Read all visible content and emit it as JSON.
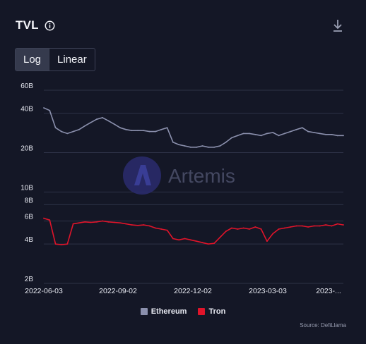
{
  "header": {
    "title": "TVL",
    "info_icon": "info-icon",
    "download_icon": "download-icon"
  },
  "scale_toggle": {
    "options": [
      "Log",
      "Linear"
    ],
    "selected": "Log"
  },
  "watermark": {
    "text": "Artemis",
    "logo": "artemis-logo"
  },
  "colors": {
    "background": "#141726",
    "ethereum": "#8b90ad",
    "tron": "#e0142a",
    "grid": "#2e3347",
    "axis_text": "#e8eaf2"
  },
  "source": "Source: DefiLlama",
  "chart_data": {
    "type": "line",
    "title": "TVL",
    "yscale": "log",
    "ylim": [
      2,
      60
    ],
    "y_unit": "B",
    "y_ticks": [
      "60B",
      "40B",
      "20B",
      "10B",
      "8B",
      "6B",
      "4B",
      "2B"
    ],
    "x_ticks": [
      "2022-06-03",
      "2022-09-02",
      "2022-12-02",
      "2023-03-03",
      "2023-..."
    ],
    "legend_position": "bottom-center",
    "grid": true,
    "x": [
      "2022-06-03",
      "2022-06-10",
      "2022-06-17",
      "2022-06-24",
      "2022-07-01",
      "2022-07-08",
      "2022-07-15",
      "2022-07-22",
      "2022-07-29",
      "2022-08-05",
      "2022-08-12",
      "2022-08-19",
      "2022-08-26",
      "2022-09-02",
      "2022-09-09",
      "2022-09-16",
      "2022-09-23",
      "2022-09-30",
      "2022-10-07",
      "2022-10-14",
      "2022-10-21",
      "2022-10-28",
      "2022-11-04",
      "2022-11-11",
      "2022-11-18",
      "2022-11-25",
      "2022-12-02",
      "2022-12-09",
      "2022-12-16",
      "2022-12-23",
      "2022-12-30",
      "2023-01-06",
      "2023-01-13",
      "2023-01-20",
      "2023-01-27",
      "2023-02-03",
      "2023-02-10",
      "2023-02-17",
      "2023-02-24",
      "2023-03-03",
      "2023-03-10",
      "2023-03-17",
      "2023-03-24",
      "2023-03-31",
      "2023-04-07",
      "2023-04-14",
      "2023-04-21",
      "2023-04-28",
      "2023-05-05",
      "2023-05-12",
      "2023-05-19",
      "2023-05-26"
    ],
    "series": [
      {
        "name": "Ethereum",
        "color": "#8b90ad",
        "values": [
          44,
          42,
          31,
          29,
          28,
          29,
          30,
          32,
          34,
          36,
          37,
          35,
          33,
          31,
          30,
          29.5,
          29.5,
          29.5,
          29,
          29,
          30,
          31,
          24,
          23,
          22.5,
          22,
          22,
          22.5,
          22,
          22,
          22.5,
          24,
          26,
          27,
          28,
          28,
          27.5,
          27,
          28,
          28.5,
          27,
          28,
          29,
          30,
          31,
          29,
          28.5,
          28,
          27.5,
          27.5,
          27,
          27
        ]
      },
      {
        "name": "Tron",
        "color": "#e0142a",
        "values": [
          6.3,
          6.1,
          4.0,
          3.95,
          4.0,
          5.7,
          5.8,
          5.9,
          5.85,
          5.9,
          6.0,
          5.9,
          5.85,
          5.8,
          5.7,
          5.6,
          5.55,
          5.6,
          5.5,
          5.3,
          5.2,
          5.1,
          4.4,
          4.3,
          4.4,
          4.3,
          4.2,
          4.1,
          4.0,
          4.05,
          4.5,
          5.0,
          5.3,
          5.2,
          5.3,
          5.2,
          5.4,
          5.2,
          4.2,
          4.8,
          5.2,
          5.3,
          5.4,
          5.5,
          5.5,
          5.4,
          5.5,
          5.5,
          5.6,
          5.5,
          5.7,
          5.6
        ]
      }
    ]
  }
}
